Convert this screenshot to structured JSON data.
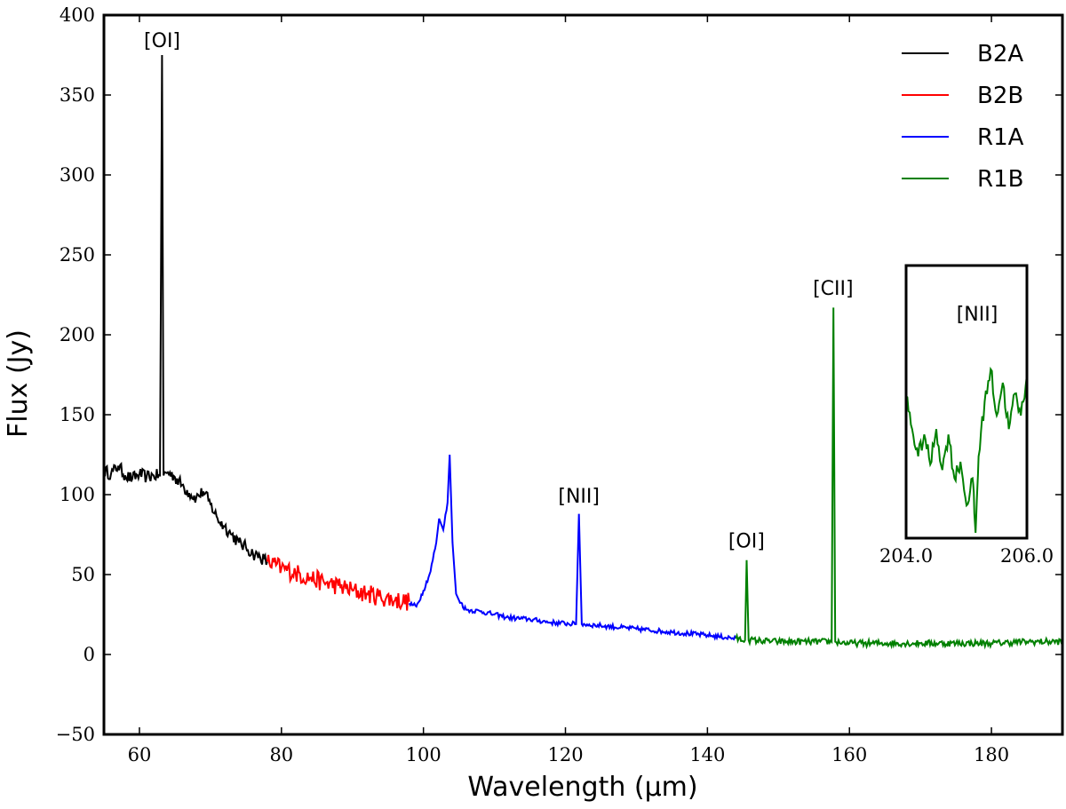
{
  "chart_data": {
    "type": "line",
    "xlabel": "Wavelength (μm)",
    "ylabel": "Flux (Jy)",
    "xlim": [
      55,
      190
    ],
    "ylim": [
      -50,
      400
    ],
    "x_ticks": [
      60,
      80,
      100,
      120,
      140,
      160,
      180
    ],
    "y_ticks": [
      -50,
      0,
      50,
      100,
      150,
      200,
      250,
      300,
      350,
      400
    ],
    "legend_position": "top-right",
    "grid": false,
    "series": [
      {
        "name": "B2A",
        "color": "#000000",
        "points": [
          [
            55,
            115
          ],
          [
            56,
            113
          ],
          [
            57,
            118
          ],
          [
            58,
            112
          ],
          [
            59,
            110
          ],
          [
            60,
            113
          ],
          [
            61,
            111
          ],
          [
            62,
            112
          ],
          [
            62.9,
            112
          ],
          [
            63.18,
            375
          ],
          [
            63.4,
            112
          ],
          [
            64,
            114
          ],
          [
            65,
            111
          ],
          [
            66,
            106
          ],
          [
            67,
            101
          ],
          [
            68,
            98
          ],
          [
            69,
            102
          ],
          [
            70,
            94
          ],
          [
            71,
            85
          ],
          [
            72,
            80
          ],
          [
            73,
            75
          ],
          [
            74,
            70
          ],
          [
            75,
            67
          ],
          [
            76,
            63
          ],
          [
            77,
            61
          ],
          [
            78,
            58
          ]
        ],
        "noise": 4
      },
      {
        "name": "B2B",
        "color": "#ff0000",
        "points": [
          [
            78,
            58
          ],
          [
            80,
            54
          ],
          [
            82,
            51
          ],
          [
            84,
            48
          ],
          [
            86,
            45
          ],
          [
            88,
            43
          ],
          [
            90,
            40
          ],
          [
            92,
            38
          ],
          [
            94,
            36
          ],
          [
            96,
            34
          ],
          [
            98,
            33
          ]
        ],
        "noise": 6
      },
      {
        "name": "R1A",
        "color": "#0000ff",
        "points": [
          [
            98,
            32
          ],
          [
            99,
            30
          ],
          [
            100,
            40
          ],
          [
            101,
            52
          ],
          [
            101.8,
            70
          ],
          [
            102.2,
            85
          ],
          [
            102.8,
            78
          ],
          [
            103.4,
            95
          ],
          [
            103.7,
            125
          ],
          [
            104.1,
            70
          ],
          [
            104.6,
            38
          ],
          [
            105,
            34
          ],
          [
            106,
            28
          ],
          [
            108,
            27
          ],
          [
            110,
            25
          ],
          [
            112,
            23
          ],
          [
            115,
            22
          ],
          [
            118,
            20
          ],
          [
            121.5,
            19
          ],
          [
            121.9,
            88
          ],
          [
            122.3,
            19
          ],
          [
            125,
            18
          ],
          [
            130,
            16
          ],
          [
            135,
            14
          ],
          [
            140,
            12
          ],
          [
            144,
            10
          ]
        ],
        "noise": 1.5
      },
      {
        "name": "R1B",
        "color": "#008000",
        "points": [
          [
            144,
            10
          ],
          [
            145.3,
            9
          ],
          [
            145.52,
            59
          ],
          [
            145.8,
            9
          ],
          [
            150,
            8
          ],
          [
            155,
            8
          ],
          [
            157.5,
            8
          ],
          [
            157.74,
            217
          ],
          [
            158,
            8
          ],
          [
            160,
            7
          ],
          [
            165,
            7
          ],
          [
            170,
            7
          ],
          [
            175,
            7
          ],
          [
            180,
            7
          ],
          [
            185,
            8
          ],
          [
            190,
            8
          ]
        ],
        "noise": 2
      }
    ],
    "annotations": [
      {
        "text": "[OI]",
        "x": 63.2,
        "y": 380
      },
      {
        "text": "[NII]",
        "x": 121.9,
        "y": 95
      },
      {
        "text": "[OI]",
        "x": 145.5,
        "y": 67
      },
      {
        "text": "[CII]",
        "x": 157.7,
        "y": 225
      }
    ],
    "inset": {
      "annotation": "[NII]",
      "xlim": [
        204.0,
        206.0
      ],
      "x_ticks": [
        "204.0",
        "206.0"
      ],
      "color": "#008000",
      "points": [
        [
          204.0,
          0.52
        ],
        [
          204.1,
          0.4
        ],
        [
          204.2,
          0.3
        ],
        [
          204.3,
          0.38
        ],
        [
          204.4,
          0.27
        ],
        [
          204.5,
          0.4
        ],
        [
          204.6,
          0.25
        ],
        [
          204.7,
          0.38
        ],
        [
          204.8,
          0.22
        ],
        [
          204.9,
          0.28
        ],
        [
          205.0,
          0.12
        ],
        [
          205.1,
          0.22
        ],
        [
          205.15,
          0.02
        ],
        [
          205.2,
          0.3
        ],
        [
          205.3,
          0.5
        ],
        [
          205.4,
          0.62
        ],
        [
          205.5,
          0.45
        ],
        [
          205.6,
          0.57
        ],
        [
          205.7,
          0.4
        ],
        [
          205.8,
          0.53
        ],
        [
          205.9,
          0.45
        ],
        [
          206.0,
          0.6
        ]
      ]
    }
  }
}
